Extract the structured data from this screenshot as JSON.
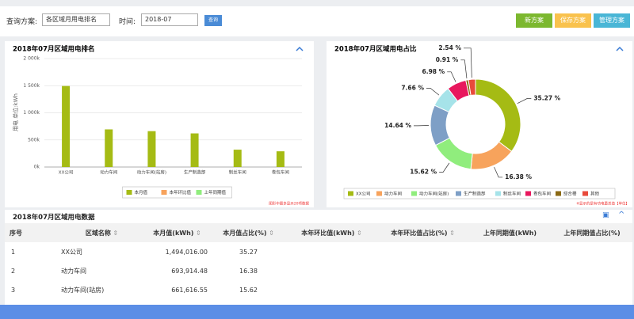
{
  "toolbar": {
    "scheme_label": "查询方案:",
    "scheme_value": "各区域月用电排名",
    "time_label": "时间:",
    "time_value": "2018-07",
    "query_button": "查询",
    "buttons": [
      "新方案",
      "保存方案",
      "管理方案"
    ]
  },
  "chart_data": [
    {
      "type": "bar",
      "title": "2018年07月区域用电排名",
      "y_label": "用电 单位:kWh",
      "categories": [
        "XX公司",
        "动力车间",
        "动力车间(站房)",
        "生产制造部",
        "制丝车间",
        "卷包车间"
      ],
      "series": [
        {
          "name": "本月值",
          "color": "#a5bb14",
          "values": [
            1494016,
            693914.48,
            661616.55,
            620000,
            320000,
            290000
          ]
        },
        {
          "name": "本年环比值",
          "color": "#f7a35c",
          "values": [
            null,
            null,
            null,
            null,
            null,
            null
          ]
        },
        {
          "name": "上年同期值",
          "color": "#90ed7d",
          "values": [
            null,
            null,
            null,
            null,
            null,
            null
          ]
        }
      ],
      "ylim": [
        0,
        2000000
      ],
      "yticks": [
        {
          "value": 0,
          "label": "0k"
        },
        {
          "value": 500000,
          "label": "500k"
        },
        {
          "value": 1000000,
          "label": "1 000k"
        },
        {
          "value": 1500000,
          "label": "1 500k"
        },
        {
          "value": 2000000,
          "label": "2 000k"
        }
      ],
      "grid": true,
      "note": "图形中最多显示20项数据"
    },
    {
      "type": "pie",
      "title": "2018年07月区域用电占比",
      "categories": [
        "XX公司",
        "动力车间",
        "动力车间(站房)",
        "生产制造部",
        "制丝车间",
        "卷包车间",
        "综合楼",
        "其他"
      ],
      "values": [
        35.27,
        16.38,
        15.62,
        14.64,
        7.66,
        6.98,
        0.91,
        2.54
      ],
      "value_labels": [
        "35.27 %",
        "16.38 %",
        "15.62 %",
        "14.64 %",
        "7.66 %",
        "6.98 %",
        "0.91 %",
        "2.54 %"
      ],
      "colors": [
        "#a5bb14",
        "#f7a35c",
        "#90ed7d",
        "#7e9fc6",
        "#a6e3e9",
        "#e8175d",
        "#8b6914",
        "#e84a3b"
      ],
      "note": "※显示的是有功电量总值【单位】"
    }
  ],
  "table": {
    "title": "2018年07月区域用电数据",
    "headers": [
      "序号",
      "区域名称",
      "本月值(kWh)",
      "本月值占比(%)",
      "本年环比值(kWh)",
      "本年环比值占比(%)",
      "上年同期值(kWh)",
      "上年同期值占比(%)"
    ],
    "rows": [
      [
        "1",
        "XX公司",
        "1,494,016.00",
        "35.27"
      ],
      [
        "2",
        "动力车间",
        "693,914.48",
        "16.38"
      ],
      [
        "3",
        "动力车间(站房)",
        "661,616.55",
        "15.62"
      ]
    ]
  }
}
